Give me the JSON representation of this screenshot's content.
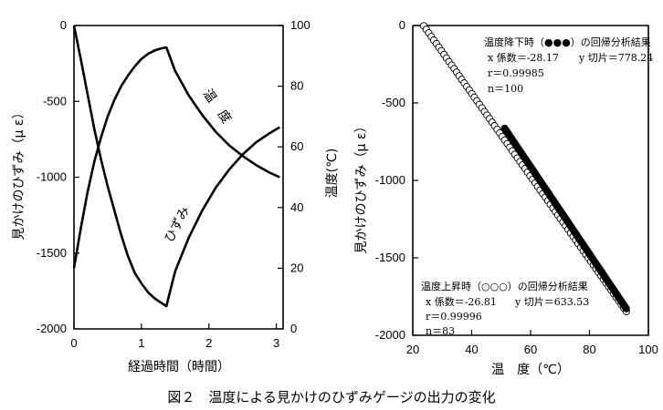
{
  "caption": "図２　温度による見かけのひずみゲージの出力の変化",
  "chart_data": [
    {
      "type": "line",
      "xlabel": "経過時間（時間）",
      "ylabel_left": "見かけのひずみ（μ ε）",
      "ylabel_right": "温度(℃)",
      "xlim": [
        0,
        3.1
      ],
      "ylim_left": [
        -2000,
        0
      ],
      "ylim_right": [
        0,
        100
      ],
      "x_ticks": [
        "0",
        "1",
        "2",
        "3"
      ],
      "y_ticks_left": [
        "0",
        "-500",
        "-1000",
        "-1500",
        "-2000"
      ],
      "y_ticks_right": [
        "100",
        "80",
        "60",
        "40",
        "20",
        "0"
      ],
      "grid": false,
      "series": [
        {
          "name": "温　度",
          "axis": "right",
          "x": [
            0,
            0.1,
            0.2,
            0.3,
            0.4,
            0.5,
            0.6,
            0.7,
            0.8,
            0.9,
            1.0,
            1.1,
            1.2,
            1.3,
            1.37,
            1.5,
            1.7,
            1.9,
            2.1,
            2.3,
            2.5,
            2.7,
            2.9,
            3.05
          ],
          "values": [
            20,
            33,
            45,
            55,
            63,
            70,
            75.5,
            80,
            83.5,
            86.5,
            89,
            90.7,
            91.8,
            92.5,
            92.8,
            85,
            77,
            70.5,
            65,
            60.5,
            57,
            54,
            51.5,
            50
          ]
        },
        {
          "name": "ひずみ",
          "axis": "left",
          "x": [
            0,
            0.1,
            0.2,
            0.3,
            0.4,
            0.5,
            0.6,
            0.7,
            0.8,
            0.9,
            1.0,
            1.1,
            1.2,
            1.3,
            1.37,
            1.5,
            1.7,
            1.9,
            2.1,
            2.3,
            2.5,
            2.7,
            2.9,
            3.05
          ],
          "values": [
            0,
            -220,
            -450,
            -680,
            -880,
            -1060,
            -1220,
            -1380,
            -1520,
            -1630,
            -1700,
            -1760,
            -1800,
            -1830,
            -1850,
            -1620,
            -1400,
            -1220,
            -1070,
            -950,
            -850,
            -770,
            -710,
            -670
          ]
        }
      ]
    },
    {
      "type": "scatter",
      "xlabel": "温　度（℃）",
      "ylabel": "見かけのひずみ（μ ε）",
      "xlim": [
        20,
        100
      ],
      "ylim": [
        -2000,
        0
      ],
      "x_ticks": [
        "20",
        "40",
        "60",
        "80",
        "100"
      ],
      "y_ticks": [
        "0",
        "-500",
        "-1000",
        "-1500",
        "-2000"
      ],
      "grid": false,
      "series": [
        {
          "name": "温度上昇時（○○○）",
          "marker": "open-circle",
          "x_start": 22,
          "x_end": 92.5,
          "count": 83,
          "slope": -26.81,
          "intercept": 633.53
        },
        {
          "name": "温度降下時（●●●）",
          "marker": "filled-circle",
          "x_start": 51.2,
          "x_end": 92.5,
          "count": 100,
          "slope": -28.17,
          "intercept": 778.24
        }
      ],
      "annotations": {
        "cooling": {
          "title": "温度降下時（●●●）の回帰分析結果",
          "x_coef": "x 係数＝-28.17",
          "y_intercept": "y 切片＝778.24",
          "r": "r＝0.99985",
          "n": "n＝100"
        },
        "heating": {
          "title": "温度上昇時（○○○）の回帰分析結果",
          "x_coef": "x 係数＝-26.81",
          "y_intercept": "y 切片＝633.53",
          "r": "r＝0.99996",
          "n": "n＝83"
        }
      }
    }
  ]
}
